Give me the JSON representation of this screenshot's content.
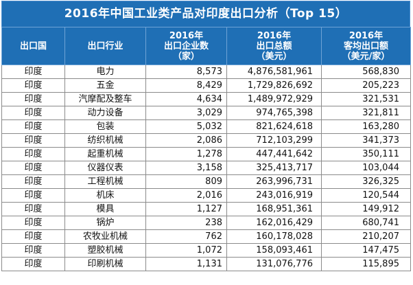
{
  "title": "2016年中国工业类产品对印度出口分析（Top 15）",
  "headers": {
    "country": [
      "出口国"
    ],
    "industry": [
      "出口行业"
    ],
    "companies": [
      "2016年",
      "出口企业数",
      "（家）"
    ],
    "total": [
      "2016年",
      "出口总额",
      "（美元）"
    ],
    "avg": [
      "2016年",
      "客均出口额",
      "（美元/家）"
    ]
  },
  "rows": [
    {
      "country": "印度",
      "industry": "电力",
      "companies": "8,573",
      "total": "4,876,581,961",
      "avg": "568,830"
    },
    {
      "country": "印度",
      "industry": "五金",
      "companies": "8,429",
      "total": "1,729,826,692",
      "avg": "205,223"
    },
    {
      "country": "印度",
      "industry": "汽摩配及整车",
      "companies": "4,634",
      "total": "1,489,972,929",
      "avg": "321,531"
    },
    {
      "country": "印度",
      "industry": "动力设备",
      "companies": "3,029",
      "total": "974,765,398",
      "avg": "321,811"
    },
    {
      "country": "印度",
      "industry": "包装",
      "companies": "5,032",
      "total": "821,624,618",
      "avg": "163,280"
    },
    {
      "country": "印度",
      "industry": "纺织机械",
      "companies": "2,086",
      "total": "712,103,299",
      "avg": "341,373"
    },
    {
      "country": "印度",
      "industry": "起重机械",
      "companies": "1,278",
      "total": "447,441,642",
      "avg": "350,111"
    },
    {
      "country": "印度",
      "industry": "仪器仪表",
      "companies": "3,158",
      "total": "325,413,717",
      "avg": "103,044"
    },
    {
      "country": "印度",
      "industry": "工程机械",
      "companies": "809",
      "total": "263,996,731",
      "avg": "326,325"
    },
    {
      "country": "印度",
      "industry": "机床",
      "companies": "2,016",
      "total": "243,016,919",
      "avg": "120,544"
    },
    {
      "country": "印度",
      "industry": "模具",
      "companies": "1,127",
      "total": "168,951,361",
      "avg": "149,912"
    },
    {
      "country": "印度",
      "industry": "锅炉",
      "companies": "238",
      "total": "162,016,429",
      "avg": "680,741"
    },
    {
      "country": "印度",
      "industry": "农牧业机械",
      "companies": "762",
      "total": "160,178,028",
      "avg": "210,207"
    },
    {
      "country": "印度",
      "industry": "塑胶机械",
      "companies": "1,072",
      "total": "158,093,461",
      "avg": "147,475"
    },
    {
      "country": "印度",
      "industry": "印刷机械",
      "companies": "1,131",
      "total": "131,076,776",
      "avg": "115,895"
    }
  ],
  "colors": {
    "header_bg": "#1f6fb5",
    "header_text": "#ffffff",
    "grid": "#8a8a8a"
  }
}
